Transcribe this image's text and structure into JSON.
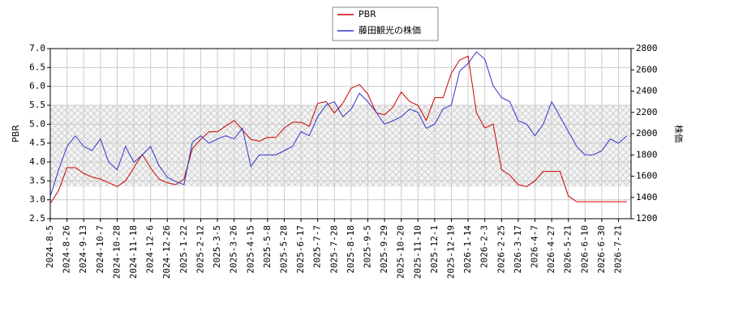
{
  "chart_data": {
    "type": "line",
    "ylabel": "PBR",
    "y2label": "株価",
    "categories": [
      "2024-8-5",
      null,
      "2024-8-26",
      null,
      "2024-9-13",
      null,
      "2024-10-7",
      null,
      "2024-10-28",
      null,
      "2024-11-18",
      null,
      "2024-12-6",
      null,
      "2024-12-26",
      null,
      "2025-1-22",
      null,
      "2025-2-12",
      null,
      "2025-3-5",
      null,
      "2025-3-26",
      null,
      "2025-4-15",
      null,
      "2025-5-8",
      null,
      "2025-5-28",
      null,
      "2025-6-17",
      null,
      "2025-7-7",
      null,
      "2025-7-28",
      null,
      "2025-8-18",
      null,
      "2025-9-5",
      null,
      "2025-9-29",
      null,
      "2025-10-20",
      null,
      "2025-11-10",
      null,
      "2025-12-1",
      null,
      "2025-12-19",
      null,
      "2026-1-14",
      null,
      "2026-2-3",
      null,
      "2026-2-25",
      null,
      "2026-3-17",
      null,
      "2026-4-7",
      null,
      "2026-4-27",
      null,
      "2026-5-21",
      null,
      "2026-6-10",
      null,
      "2026-6-30",
      null,
      "2026-7-21",
      null
    ],
    "series": [
      {
        "name": "PBR",
        "color": "#cc0000",
        "values": [
          2.9,
          3.25,
          3.85,
          3.85,
          3.7,
          3.6,
          3.55,
          3.45,
          3.35,
          3.5,
          3.85,
          4.2,
          3.85,
          3.55,
          3.45,
          3.4,
          3.55,
          4.35,
          4.6,
          4.8,
          4.8,
          4.95,
          5.1,
          4.85,
          4.6,
          4.55,
          4.65,
          4.65,
          4.9,
          5.05,
          5.05,
          4.95,
          5.55,
          5.6,
          5.3,
          5.55,
          5.95,
          6.05,
          5.8,
          5.3,
          5.25,
          5.45,
          5.85,
          5.6,
          5.5,
          5.1,
          5.7,
          5.7,
          6.35,
          6.7,
          6.8,
          5.3,
          4.9,
          5.0,
          3.8,
          3.65,
          3.4,
          3.35,
          3.5,
          3.75,
          3.75,
          3.75,
          3.1,
          2.95,
          2.95,
          2.95,
          2.95,
          2.95,
          2.95,
          2.95
        ]
      },
      {
        "name": "藤田観光の株価",
        "color": "#3333cc",
        "axis": "y2",
        "values": [
          1410,
          1660,
          1880,
          1980,
          1880,
          1840,
          1950,
          1730,
          1660,
          1880,
          1730,
          1800,
          1880,
          1700,
          1590,
          1550,
          1520,
          1920,
          1980,
          1910,
          1950,
          1980,
          1950,
          2050,
          1690,
          1800,
          1800,
          1800,
          1840,
          1880,
          2020,
          1980,
          2160,
          2270,
          2300,
          2160,
          2230,
          2380,
          2300,
          2200,
          2090,
          2120,
          2160,
          2230,
          2200,
          2050,
          2090,
          2230,
          2270,
          2590,
          2660,
          2770,
          2700,
          2450,
          2340,
          2300,
          2120,
          2090,
          1980,
          2090,
          2300,
          2160,
          2020,
          1880,
          1800,
          1800,
          1840,
          1950,
          1910,
          1980
        ]
      }
    ],
    "shaded_range": [
      3.35,
      5.5
    ],
    "ylim": [
      2.5,
      7.0
    ],
    "yticks": [
      2.5,
      {
        "value": 3.0,
        "label": "3.0"
      },
      3.5,
      {
        "value": 4.0,
        "label": "4.0"
      },
      4.5,
      {
        "value": 5.0,
        "label": "5.0"
      },
      5.5,
      {
        "value": 6.0,
        "label": "6.0"
      },
      6.5,
      {
        "value": 7.0,
        "label": "7.0"
      }
    ],
    "y2lim": [
      1200,
      2800
    ],
    "y2ticks": [
      1200,
      1400,
      1600,
      1800,
      2000,
      2200,
      2400,
      2600,
      2800
    ],
    "grid": true
  }
}
